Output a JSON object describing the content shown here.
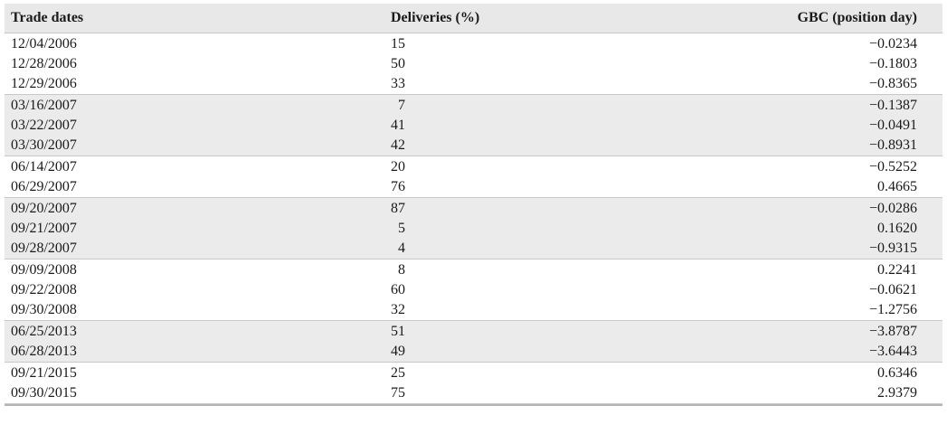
{
  "headers": {
    "trade_dates": "Trade dates",
    "deliveries": "Deliveries (%)",
    "gbc": "GBC (position day)"
  },
  "groups": [
    {
      "rows": [
        {
          "date": "12/04/2006",
          "deliveries": "15",
          "gbc": "−0.0234"
        },
        {
          "date": "12/28/2006",
          "deliveries": "50",
          "gbc": "−0.1803"
        },
        {
          "date": "12/29/2006",
          "deliveries": "33",
          "gbc": "−0.8365"
        }
      ]
    },
    {
      "rows": [
        {
          "date": "03/16/2007",
          "deliveries": "7",
          "gbc": "−0.1387"
        },
        {
          "date": "03/22/2007",
          "deliveries": "41",
          "gbc": "−0.0491"
        },
        {
          "date": "03/30/2007",
          "deliveries": "42",
          "gbc": "−0.8931"
        }
      ]
    },
    {
      "rows": [
        {
          "date": "06/14/2007",
          "deliveries": "20",
          "gbc": "−0.5252"
        },
        {
          "date": "06/29/2007",
          "deliveries": "76",
          "gbc": "0.4665"
        }
      ]
    },
    {
      "rows": [
        {
          "date": "09/20/2007",
          "deliveries": "87",
          "gbc": "−0.0286"
        },
        {
          "date": "09/21/2007",
          "deliveries": "5",
          "gbc": "0.1620"
        },
        {
          "date": "09/28/2007",
          "deliveries": "4",
          "gbc": "−0.9315"
        }
      ]
    },
    {
      "rows": [
        {
          "date": "09/09/2008",
          "deliveries": "8",
          "gbc": "0.2241"
        },
        {
          "date": "09/22/2008",
          "deliveries": "60",
          "gbc": "−0.0621"
        },
        {
          "date": "09/30/2008",
          "deliveries": "32",
          "gbc": "−1.2756"
        }
      ]
    },
    {
      "rows": [
        {
          "date": "06/25/2013",
          "deliveries": "51",
          "gbc": "−3.8787"
        },
        {
          "date": "06/28/2013",
          "deliveries": "49",
          "gbc": "−3.6443"
        }
      ]
    },
    {
      "rows": [
        {
          "date": "09/21/2015",
          "deliveries": "25",
          "gbc": "0.6346"
        },
        {
          "date": "09/30/2015",
          "deliveries": "75",
          "gbc": "2.9379"
        }
      ]
    }
  ]
}
